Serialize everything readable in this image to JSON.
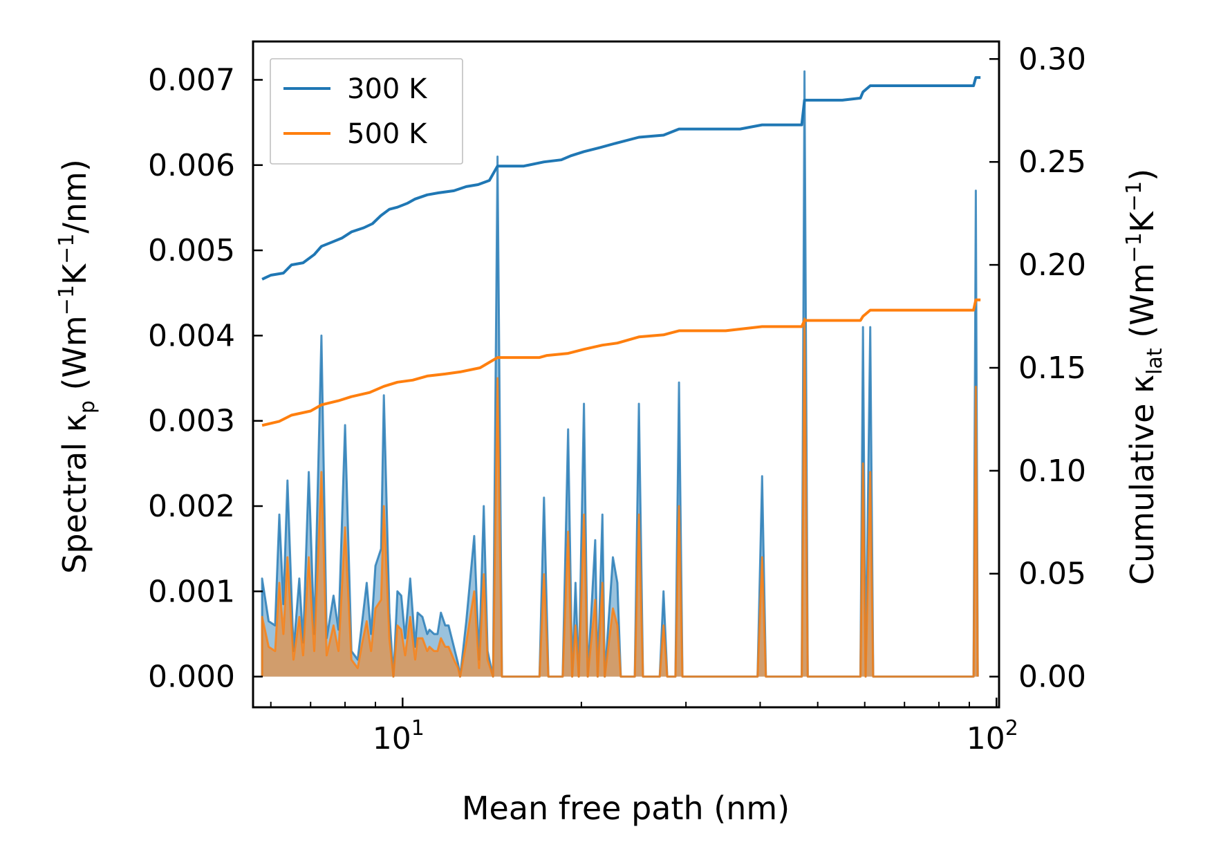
{
  "chart_data": {
    "type": "line",
    "subtype": "spectral-and-cumulative",
    "title": "",
    "xlabel": "Mean free path (nm)",
    "xscale": "log",
    "xlim": [
      5.6,
      101
    ],
    "x_ticks": [
      {
        "value": 10,
        "base": "10",
        "exp": "1"
      },
      {
        "value": 100,
        "base": "10",
        "exp": "2"
      }
    ],
    "ylabel_left": {
      "prefix": "Spectral κ",
      "sub": "p",
      "unit_open": " (Wm",
      "exp1": "−1",
      "unit_mid": "K",
      "exp2": "−1",
      "unit_close": "/nm)"
    },
    "ylabel_right": {
      "prefix": "Cumulative κ",
      "sub": "lat",
      "unit_open": " (Wm",
      "exp1": "−1",
      "unit_mid": "K",
      "exp2": "−1",
      "unit_close": ")"
    },
    "ylim_left": [
      -0.00036,
      0.00745
    ],
    "ylim_right": [
      -0.0149,
      0.3085
    ],
    "yticks_left": [
      "0.000",
      "0.001",
      "0.002",
      "0.003",
      "0.004",
      "0.005",
      "0.006",
      "0.007"
    ],
    "yticks_right": [
      "0.00",
      "0.05",
      "0.10",
      "0.15",
      "0.20",
      "0.25",
      "0.30"
    ],
    "legend_position": "upper-left",
    "colors": {
      "s300": "#1f77b4",
      "s500": "#ff7f0e",
      "fill300": "#1f77b4",
      "fill500": "#ff7f0e"
    },
    "legend": [
      {
        "name": "300 K",
        "color": "#1f77b4"
      },
      {
        "name": "500 K",
        "color": "#ff7f0e"
      }
    ],
    "spectral_series": [
      {
        "name": "300 K spectral",
        "color": "#1f77b4",
        "points": [
          [
            5.8,
            0
          ],
          [
            5.8,
            0.00115
          ],
          [
            5.95,
            0.00065
          ],
          [
            6.1,
            0.0006
          ],
          [
            6.2,
            0.0019
          ],
          [
            6.3,
            0.00085
          ],
          [
            6.4,
            0.0023
          ],
          [
            6.55,
            0.0003
          ],
          [
            6.7,
            0.00115
          ],
          [
            6.8,
            0.0004
          ],
          [
            6.95,
            0.0024
          ],
          [
            7.1,
            0.0005
          ],
          [
            7.3,
            0.004
          ],
          [
            7.45,
            0.00045
          ],
          [
            7.65,
            0.00095
          ],
          [
            7.8,
            0.00055
          ],
          [
            8.0,
            0.00295
          ],
          [
            8.2,
            0.0003
          ],
          [
            8.4,
            0.0002
          ],
          [
            8.55,
            0.00065
          ],
          [
            8.7,
            0.0011
          ],
          [
            8.85,
            0.0005
          ],
          [
            9.0,
            0.0013
          ],
          [
            9.2,
            0.0015
          ],
          [
            9.3,
            0.0033
          ],
          [
            9.5,
            0.00075
          ],
          [
            9.65,
            0
          ],
          [
            9.8,
            0.001
          ],
          [
            9.95,
            0.00095
          ],
          [
            10.1,
            0.00045
          ],
          [
            10.3,
            0.00115
          ],
          [
            10.5,
            0.00035
          ],
          [
            10.6,
            0.00075
          ],
          [
            10.8,
            0.0007
          ],
          [
            11.0,
            0.0005
          ],
          [
            11.1,
            0.00055
          ],
          [
            11.3,
            0.0005
          ],
          [
            11.45,
            0.0005
          ],
          [
            11.6,
            0.00075
          ],
          [
            11.8,
            0.0006
          ],
          [
            11.95,
            0.0006
          ],
          [
            12.2,
            0.00035
          ],
          [
            12.4,
            0.00015
          ],
          [
            12.5,
            0
          ],
          [
            12.8,
            0.00065
          ],
          [
            13.2,
            0.00165
          ],
          [
            13.45,
            0.0002
          ],
          [
            13.7,
            0.002
          ],
          [
            13.9,
            0.0003
          ],
          [
            14.2,
            0
          ],
          [
            14.45,
            0.0061
          ],
          [
            14.7,
            0
          ],
          [
            17.0,
            0
          ],
          [
            17.3,
            0.0021
          ],
          [
            17.6,
            0
          ],
          [
            18.6,
            0
          ],
          [
            19.0,
            0.0029
          ],
          [
            19.3,
            0
          ],
          [
            19.55,
            0.0011
          ],
          [
            19.8,
            0
          ],
          [
            20.2,
            0.0032
          ],
          [
            20.5,
            0
          ],
          [
            21.1,
            0.0016
          ],
          [
            21.3,
            0
          ],
          [
            21.7,
            0.0019
          ],
          [
            21.9,
            0
          ],
          [
            22.6,
            0.0014
          ],
          [
            23.0,
            0.0011
          ],
          [
            23.3,
            0
          ],
          [
            24.6,
            0
          ],
          [
            25.0,
            0.0032
          ],
          [
            25.4,
            0
          ],
          [
            27.1,
            0
          ],
          [
            27.5,
            0.001
          ],
          [
            27.9,
            0
          ],
          [
            28.8,
            0
          ],
          [
            29.2,
            0.00345
          ],
          [
            29.6,
            0
          ],
          [
            39.6,
            0
          ],
          [
            40.3,
            0.00235
          ],
          [
            40.9,
            0
          ],
          [
            47.0,
            0
          ],
          [
            47.5,
            0.0071
          ],
          [
            48.1,
            0
          ],
          [
            59.0,
            0
          ],
          [
            59.6,
            0.0041
          ],
          [
            60.2,
            0
          ],
          [
            61.3,
            0.0041
          ],
          [
            62.0,
            0
          ],
          [
            91.5,
            0
          ],
          [
            92.3,
            0.0057
          ],
          [
            93.0,
            0
          ]
        ]
      },
      {
        "name": "500 K spectral",
        "color": "#ff7f0e",
        "points": [
          [
            5.8,
            0
          ],
          [
            5.8,
            0.0007
          ],
          [
            5.95,
            0.00035
          ],
          [
            6.1,
            0.0003
          ],
          [
            6.2,
            0.0011
          ],
          [
            6.3,
            0.0005
          ],
          [
            6.4,
            0.0014
          ],
          [
            6.55,
            0.0002
          ],
          [
            6.7,
            0.0007
          ],
          [
            6.8,
            0.00025
          ],
          [
            6.95,
            0.0014
          ],
          [
            7.1,
            0.0003
          ],
          [
            7.3,
            0.0024
          ],
          [
            7.45,
            0.00025
          ],
          [
            7.65,
            0.0006
          ],
          [
            7.8,
            0.0003
          ],
          [
            8.0,
            0.00175
          ],
          [
            8.2,
            0.0002
          ],
          [
            8.4,
            0.0001
          ],
          [
            8.55,
            0.0004
          ],
          [
            8.7,
            0.00065
          ],
          [
            8.85,
            0.0003
          ],
          [
            9.0,
            0.0008
          ],
          [
            9.2,
            0.0009
          ],
          [
            9.3,
            0.002
          ],
          [
            9.5,
            0.00045
          ],
          [
            9.65,
            0
          ],
          [
            9.8,
            0.0006
          ],
          [
            9.95,
            0.00055
          ],
          [
            10.1,
            0.00025
          ],
          [
            10.3,
            0.0007
          ],
          [
            10.5,
            0.0002
          ],
          [
            10.6,
            0.00045
          ],
          [
            10.8,
            0.00045
          ],
          [
            11.0,
            0.0003
          ],
          [
            11.1,
            0.00035
          ],
          [
            11.3,
            0.0003
          ],
          [
            11.45,
            0.0003
          ],
          [
            11.6,
            0.00045
          ],
          [
            11.8,
            0.00035
          ],
          [
            11.95,
            0.00035
          ],
          [
            12.2,
            0.0002
          ],
          [
            12.4,
            0.0001
          ],
          [
            12.5,
            0
          ],
          [
            12.8,
            0.0004
          ],
          [
            13.2,
            0.001
          ],
          [
            13.45,
            0.0001
          ],
          [
            13.7,
            0.0012
          ],
          [
            13.9,
            0.0002
          ],
          [
            14.2,
            0
          ],
          [
            14.45,
            0.0035
          ],
          [
            14.7,
            0
          ],
          [
            17.0,
            0
          ],
          [
            17.3,
            0.0012
          ],
          [
            17.6,
            0
          ],
          [
            18.6,
            0
          ],
          [
            19.0,
            0.0017
          ],
          [
            19.3,
            0
          ],
          [
            19.55,
            0.0006
          ],
          [
            19.8,
            0
          ],
          [
            20.2,
            0.0019
          ],
          [
            20.5,
            0
          ],
          [
            21.1,
            0.0009
          ],
          [
            21.3,
            0
          ],
          [
            21.7,
            0.0011
          ],
          [
            21.9,
            0
          ],
          [
            22.6,
            0.0008
          ],
          [
            23.0,
            0.0006
          ],
          [
            23.3,
            0
          ],
          [
            24.6,
            0
          ],
          [
            25.0,
            0.0019
          ],
          [
            25.4,
            0
          ],
          [
            27.1,
            0
          ],
          [
            27.5,
            0.0006
          ],
          [
            27.9,
            0
          ],
          [
            28.8,
            0
          ],
          [
            29.2,
            0.002
          ],
          [
            29.6,
            0
          ],
          [
            39.6,
            0
          ],
          [
            40.3,
            0.0014
          ],
          [
            40.9,
            0
          ],
          [
            47.0,
            0
          ],
          [
            47.5,
            0.0042
          ],
          [
            48.1,
            0
          ],
          [
            59.0,
            0
          ],
          [
            59.6,
            0.0025
          ],
          [
            60.2,
            0
          ],
          [
            61.3,
            0.0024
          ],
          [
            62.0,
            0
          ],
          [
            91.5,
            0
          ],
          [
            92.3,
            0.0034
          ],
          [
            93.0,
            0
          ]
        ]
      }
    ],
    "series": [
      {
        "name": "300 K",
        "color": "#1f77b4",
        "axis": "right",
        "points": [
          [
            5.8,
            0.193
          ],
          [
            6.0,
            0.195
          ],
          [
            6.3,
            0.196
          ],
          [
            6.5,
            0.2
          ],
          [
            6.8,
            0.201
          ],
          [
            7.1,
            0.205
          ],
          [
            7.3,
            0.209
          ],
          [
            7.6,
            0.211
          ],
          [
            7.9,
            0.213
          ],
          [
            8.2,
            0.216
          ],
          [
            8.6,
            0.218
          ],
          [
            8.9,
            0.22
          ],
          [
            9.2,
            0.224
          ],
          [
            9.5,
            0.227
          ],
          [
            9.8,
            0.228
          ],
          [
            10.2,
            0.23
          ],
          [
            10.5,
            0.232
          ],
          [
            11.0,
            0.234
          ],
          [
            11.5,
            0.235
          ],
          [
            12.2,
            0.236
          ],
          [
            12.8,
            0.238
          ],
          [
            13.4,
            0.239
          ],
          [
            14.0,
            0.241
          ],
          [
            14.45,
            0.248
          ],
          [
            16.0,
            0.248
          ],
          [
            17.3,
            0.25
          ],
          [
            18.5,
            0.251
          ],
          [
            19.2,
            0.253
          ],
          [
            20.2,
            0.255
          ],
          [
            21.5,
            0.257
          ],
          [
            22.8,
            0.259
          ],
          [
            25.0,
            0.262
          ],
          [
            27.5,
            0.263
          ],
          [
            29.2,
            0.266
          ],
          [
            33.0,
            0.266
          ],
          [
            37.0,
            0.266
          ],
          [
            40.3,
            0.268
          ],
          [
            44.0,
            0.268
          ],
          [
            47.0,
            0.268
          ],
          [
            47.5,
            0.28
          ],
          [
            55.0,
            0.28
          ],
          [
            59.0,
            0.281
          ],
          [
            59.6,
            0.284
          ],
          [
            61.3,
            0.287
          ],
          [
            70.0,
            0.287
          ],
          [
            80.0,
            0.287
          ],
          [
            91.5,
            0.287
          ],
          [
            92.3,
            0.291
          ],
          [
            94.0,
            0.291
          ]
        ]
      },
      {
        "name": "500 K",
        "color": "#ff7f0e",
        "axis": "right",
        "points": [
          [
            5.8,
            0.122
          ],
          [
            6.2,
            0.124
          ],
          [
            6.5,
            0.127
          ],
          [
            7.0,
            0.129
          ],
          [
            7.3,
            0.132
          ],
          [
            7.8,
            0.134
          ],
          [
            8.2,
            0.136
          ],
          [
            8.8,
            0.138
          ],
          [
            9.3,
            0.141
          ],
          [
            9.8,
            0.143
          ],
          [
            10.4,
            0.144
          ],
          [
            11.0,
            0.146
          ],
          [
            11.8,
            0.147
          ],
          [
            12.5,
            0.148
          ],
          [
            13.5,
            0.15
          ],
          [
            14.45,
            0.155
          ],
          [
            17.0,
            0.155
          ],
          [
            17.5,
            0.156
          ],
          [
            19.0,
            0.157
          ],
          [
            20.2,
            0.159
          ],
          [
            21.7,
            0.161
          ],
          [
            23.0,
            0.162
          ],
          [
            25.0,
            0.165
          ],
          [
            27.5,
            0.166
          ],
          [
            29.2,
            0.168
          ],
          [
            35.0,
            0.168
          ],
          [
            40.3,
            0.17
          ],
          [
            47.0,
            0.17
          ],
          [
            47.5,
            0.173
          ],
          [
            59.0,
            0.173
          ],
          [
            59.6,
            0.175
          ],
          [
            61.3,
            0.178
          ],
          [
            80.0,
            0.178
          ],
          [
            91.5,
            0.178
          ],
          [
            92.3,
            0.183
          ],
          [
            94.0,
            0.183
          ]
        ]
      }
    ]
  }
}
